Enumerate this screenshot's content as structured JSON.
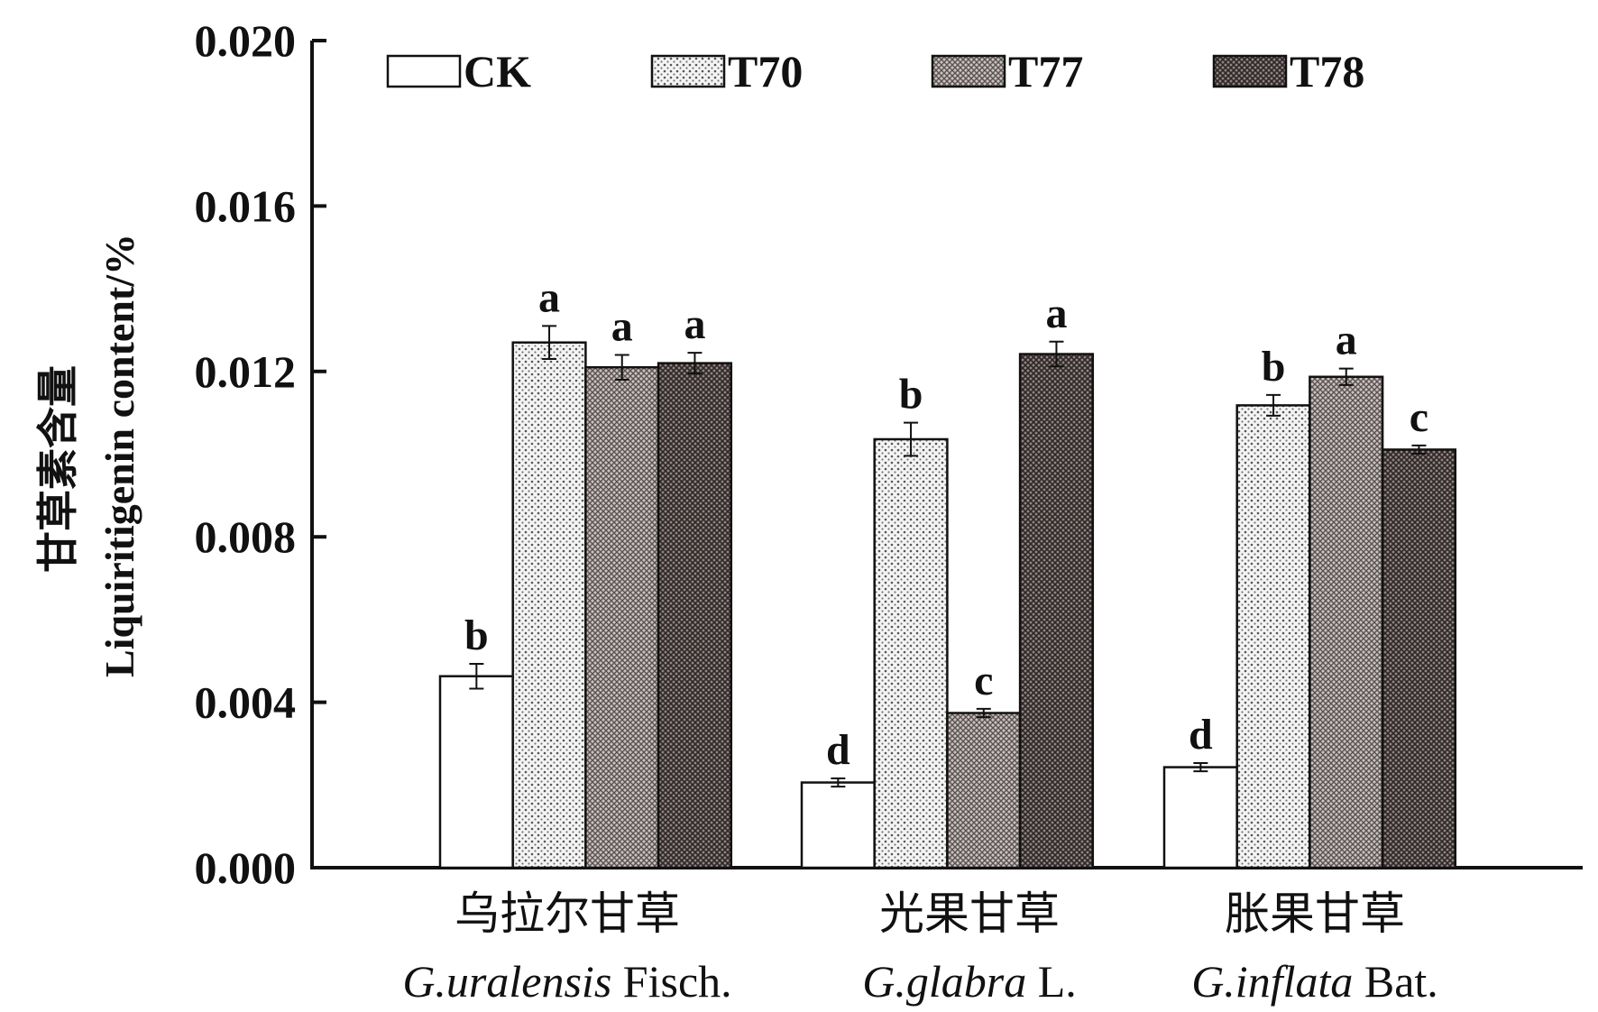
{
  "chart_data": {
    "type": "bar",
    "title": "",
    "ylabel_cn": "甘草素含量",
    "ylabel": "Liquiritigenin content/%",
    "ylim": [
      0,
      0.02
    ],
    "yticks": [
      "0.000",
      "0.004",
      "0.008",
      "0.012",
      "0.016",
      "0.020"
    ],
    "ytick_values": [
      0,
      0.004,
      0.008,
      0.012,
      0.016,
      0.02
    ],
    "categories": [
      {
        "cn": "乌拉尔甘草",
        "latin_italic": "G.uralensis",
        "latin_rest": " Fisch."
      },
      {
        "cn": "光果甘草",
        "latin_italic": "G.glabra",
        "latin_rest": " L."
      },
      {
        "cn": "胀果甘草",
        "latin_italic": "G.inflata",
        "latin_rest": " Bat."
      }
    ],
    "legend_position": "top",
    "series": [
      {
        "name": "CK",
        "pattern": "white",
        "values": [
          0.00463,
          0.00206,
          0.00243
        ],
        "errors": [
          0.0003,
          0.0001,
          0.0001
        ],
        "letters": [
          "b",
          "d",
          "d"
        ]
      },
      {
        "name": "T70",
        "pattern": "dots",
        "values": [
          0.0127,
          0.01036,
          0.01118
        ],
        "errors": [
          0.0004,
          0.0004,
          0.00025
        ],
        "letters": [
          "a",
          "b",
          "b"
        ]
      },
      {
        "name": "T77",
        "pattern": "crosshatch",
        "values": [
          0.0121,
          0.00374,
          0.01187
        ],
        "errors": [
          0.0003,
          0.0001,
          0.0002
        ],
        "letters": [
          "a",
          "c",
          "a"
        ]
      },
      {
        "name": "T78",
        "pattern": "dark-crosshatch",
        "values": [
          0.0122,
          0.01242,
          0.01011
        ],
        "errors": [
          0.00025,
          0.0003,
          0.0001
        ],
        "letters": [
          "a",
          "a",
          "c"
        ]
      }
    ],
    "grid": false
  }
}
